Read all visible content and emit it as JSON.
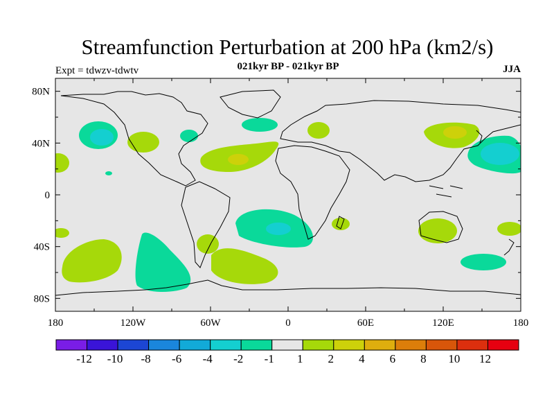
{
  "chart_data": {
    "type": "contour-map",
    "title": "Streamfunction Perturbation at 200 hPa (km2/s)",
    "subtitle": "021kyr BP - 021kyr BP",
    "left_label": "Expt = tdwzv-tdwtv",
    "right_label": "JJA",
    "x_ticks": [
      "180",
      "120W",
      "60W",
      "0",
      "60E",
      "120E",
      "180"
    ],
    "y_ticks": [
      "80N",
      "40N",
      "0",
      "40S",
      "80S"
    ],
    "lon_range": [
      -180,
      180
    ],
    "lat_range": [
      -90,
      90
    ],
    "colorbar": {
      "labels": [
        "-12",
        "-10",
        "-8",
        "-6",
        "-4",
        "-2",
        "-1",
        "1",
        "2",
        "4",
        "6",
        "8",
        "10",
        "12"
      ],
      "colors": [
        "#7a1de6",
        "#3a14d8",
        "#1c46d4",
        "#1a86dc",
        "#12aad8",
        "#14cfd0",
        "#0ad99a",
        "#e6e6e6",
        "#a6d90a",
        "#cdd10a",
        "#deae0e",
        "#dc7e0a",
        "#d8560a",
        "#dc2f0e",
        "#e60010"
      ]
    },
    "anomalies": [
      {
        "region": "North Pacific (~145W, 45N)",
        "min_level": -4
      },
      {
        "region": "NW Atlantic (~75W, 40N)",
        "min_level": -2
      },
      {
        "region": "North Atlantic (~35W, 25N)",
        "max_level": 4
      },
      {
        "region": "NW Pacific (~130E, 45N)",
        "max_level": 4
      },
      {
        "region": "NE Pacific (~160E, 30N)",
        "min_level": -4
      },
      {
        "region": "South Atlantic (~5W, 25S)",
        "min_level": -4
      },
      {
        "region": "SE Pacific (~95W, 55S)",
        "min_level": -2
      },
      {
        "region": "S Pacific (~150W, 50S)",
        "max_level": 2
      },
      {
        "region": "S Atlantic (~40W, 50S)",
        "max_level": 2
      },
      {
        "region": "Australia (~120E, 25S)",
        "max_level": 2
      }
    ]
  }
}
